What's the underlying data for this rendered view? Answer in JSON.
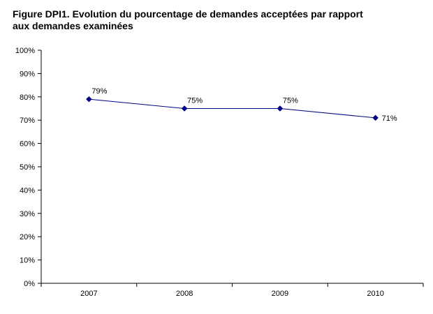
{
  "title": {
    "line1": "Figure DPI1. Evolution du pourcentage de demandes acceptées par rapport",
    "line2": "aux demandes examinées"
  },
  "colors": {
    "series": "#000080",
    "axis": "#000000"
  },
  "chart_data": {
    "type": "line",
    "title": "Figure DPI1. Evolution du pourcentage de demandes acceptées par rapport aux demandes examinées",
    "categories": [
      "2007",
      "2008",
      "2009",
      "2010"
    ],
    "series": [
      {
        "values": [
          79,
          75,
          75,
          71
        ],
        "labels": [
          "79%",
          "75%",
          "75%",
          "71%"
        ],
        "marker": "diamond"
      }
    ],
    "ylim": [
      0,
      100
    ],
    "yticks": [
      "0%",
      "10%",
      "20%",
      "30%",
      "40%",
      "50%",
      "60%",
      "70%",
      "80%",
      "90%",
      "100%"
    ],
    "xlabel": "",
    "ylabel": "",
    "grid": false,
    "legend": "none"
  }
}
